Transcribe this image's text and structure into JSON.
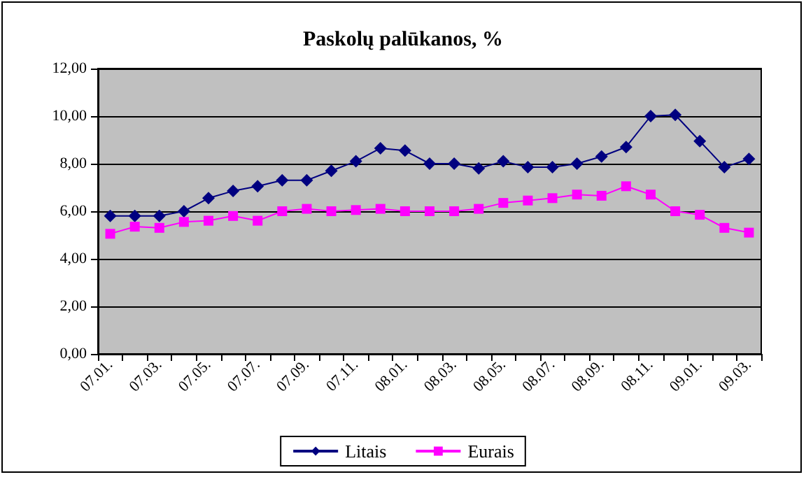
{
  "chart_data": {
    "type": "line",
    "title": "Paskolų palūkanos, %",
    "categories": [
      "07.01.",
      null,
      "07.03.",
      null,
      "07.05.",
      null,
      "07.07.",
      null,
      "07.09.",
      null,
      "07.11.",
      null,
      "08.01.",
      null,
      "08.03.",
      null,
      "08.05.",
      null,
      "08.07.",
      null,
      "08.09.",
      null,
      "08.11.",
      null,
      "09.01.",
      null,
      "09.03."
    ],
    "series": [
      {
        "name": "Litais",
        "color": "#000080",
        "marker": "diamond",
        "values": [
          5.8,
          5.8,
          5.8,
          6.0,
          6.55,
          6.85,
          7.05,
          7.3,
          7.3,
          7.7,
          8.1,
          8.65,
          8.55,
          8.0,
          8.0,
          7.8,
          8.1,
          7.85,
          7.85,
          8.0,
          8.3,
          8.7,
          10.0,
          10.05,
          8.95,
          7.85,
          8.2
        ]
      },
      {
        "name": "Eurais",
        "color": "#ff00ff",
        "marker": "square",
        "values": [
          5.05,
          5.35,
          5.3,
          5.55,
          5.6,
          5.8,
          5.6,
          6.0,
          6.1,
          6.0,
          6.05,
          6.1,
          6.0,
          6.0,
          6.0,
          6.1,
          6.35,
          6.45,
          6.55,
          6.7,
          6.65,
          7.05,
          6.7,
          6.0,
          5.85,
          5.3,
          5.1
        ]
      }
    ],
    "ylim": [
      0,
      12
    ],
    "yticks": [
      {
        "value": 0,
        "label": "0,00"
      },
      {
        "value": 2,
        "label": "2,00"
      },
      {
        "value": 4,
        "label": "4,00"
      },
      {
        "value": 6,
        "label": "6,00"
      },
      {
        "value": 8,
        "label": "8,00"
      },
      {
        "value": 10,
        "label": "10,00"
      },
      {
        "value": 12,
        "label": "12,00"
      }
    ],
    "grid": "y",
    "legend": "bottom",
    "line_style": "solid"
  }
}
